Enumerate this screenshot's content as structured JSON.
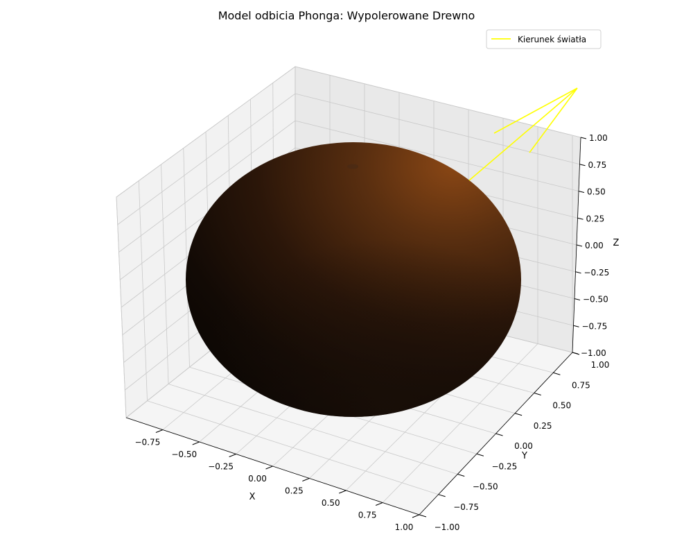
{
  "chart_data": {
    "type": "surface3d",
    "title": "Model odbicia Phonga: Wypolerowane Drewno",
    "xlabel": "X",
    "ylabel": "Y",
    "zlabel": "Z",
    "xlim": [
      -1.0,
      1.0
    ],
    "ylim": [
      -1.0,
      1.0
    ],
    "zlim": [
      -1.0,
      1.0
    ],
    "x_ticks": [
      "−0.75",
      "−0.50",
      "−0.25",
      "0.00",
      "0.25",
      "0.50",
      "0.75",
      "1.00"
    ],
    "y_ticks": [
      "−1.00",
      "−0.75",
      "−0.50",
      "−0.25",
      "0.00",
      "0.25",
      "0.50",
      "0.75",
      "1.00"
    ],
    "z_ticks": [
      "−1.00",
      "−0.75",
      "−0.50",
      "−0.25",
      "0.00",
      "0.25",
      "0.50",
      "0.75",
      "1.00"
    ],
    "grid": true,
    "surface": {
      "shape": "sphere",
      "radius": 1.0,
      "center": [
        0,
        0,
        0
      ],
      "base_color": "#8B4513"
    },
    "light_direction_line": {
      "color": "#ffff00"
    },
    "legend": {
      "placement": "top-right",
      "entries": [
        {
          "label": "Kierunek światła",
          "color": "#ffff00"
        }
      ]
    }
  }
}
